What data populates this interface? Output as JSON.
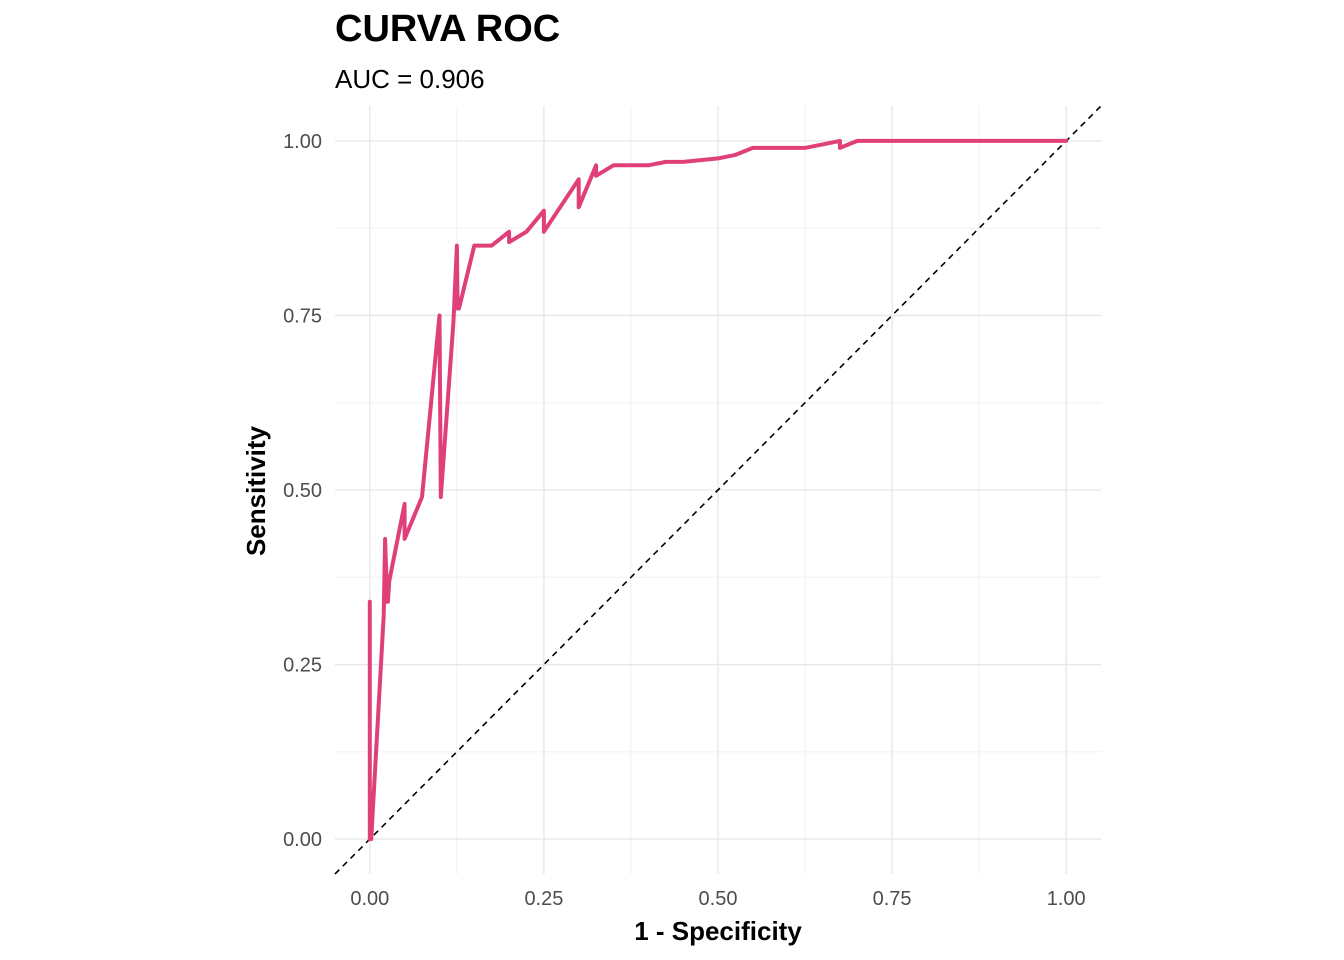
{
  "chart_data": {
    "type": "line",
    "title": "CURVA ROC",
    "subtitle": "AUC = 0.906",
    "xlabel": "1 - Specificity",
    "ylabel": "Sensitivity",
    "xlim": [
      -0.05,
      1.05
    ],
    "ylim": [
      -0.05,
      1.05
    ],
    "x_ticks": [
      "0.00",
      "0.25",
      "0.50",
      "0.75",
      "1.00"
    ],
    "y_ticks": [
      "0.00",
      "0.25",
      "0.50",
      "0.75",
      "1.00"
    ],
    "x_tick_values": [
      0,
      0.25,
      0.5,
      0.75,
      1
    ],
    "y_tick_values": [
      0,
      0.25,
      0.5,
      0.75,
      1
    ],
    "grid": true,
    "legend": "none",
    "reference_line": {
      "x": [
        -0.05,
        1.05
      ],
      "y": [
        -0.05,
        1.05
      ],
      "style": "dashed",
      "color": "#000000"
    },
    "series": [
      {
        "color": "#e0407a",
        "x": [
          0.0,
          0.0,
          0.002,
          0.02,
          0.022,
          0.025,
          0.026,
          0.028,
          0.05,
          0.05,
          0.075,
          0.1,
          0.102,
          0.12,
          0.125,
          0.126,
          0.128,
          0.15,
          0.175,
          0.2,
          0.2,
          0.225,
          0.25,
          0.25,
          0.3,
          0.3,
          0.325,
          0.325,
          0.35,
          0.4,
          0.425,
          0.45,
          0.5,
          0.525,
          0.55,
          0.575,
          0.625,
          0.65,
          0.675,
          0.675,
          0.7,
          0.75,
          1.0
        ],
        "y": [
          0.34,
          0.0,
          0.0,
          0.32,
          0.43,
          0.34,
          0.34,
          0.37,
          0.48,
          0.43,
          0.49,
          0.75,
          0.49,
          0.74,
          0.85,
          0.76,
          0.76,
          0.85,
          0.85,
          0.87,
          0.855,
          0.87,
          0.9,
          0.87,
          0.945,
          0.905,
          0.965,
          0.95,
          0.965,
          0.965,
          0.97,
          0.97,
          0.975,
          0.98,
          0.99,
          0.99,
          0.99,
          0.995,
          1.0,
          0.99,
          1.0,
          1.0,
          1.0
        ]
      }
    ]
  }
}
